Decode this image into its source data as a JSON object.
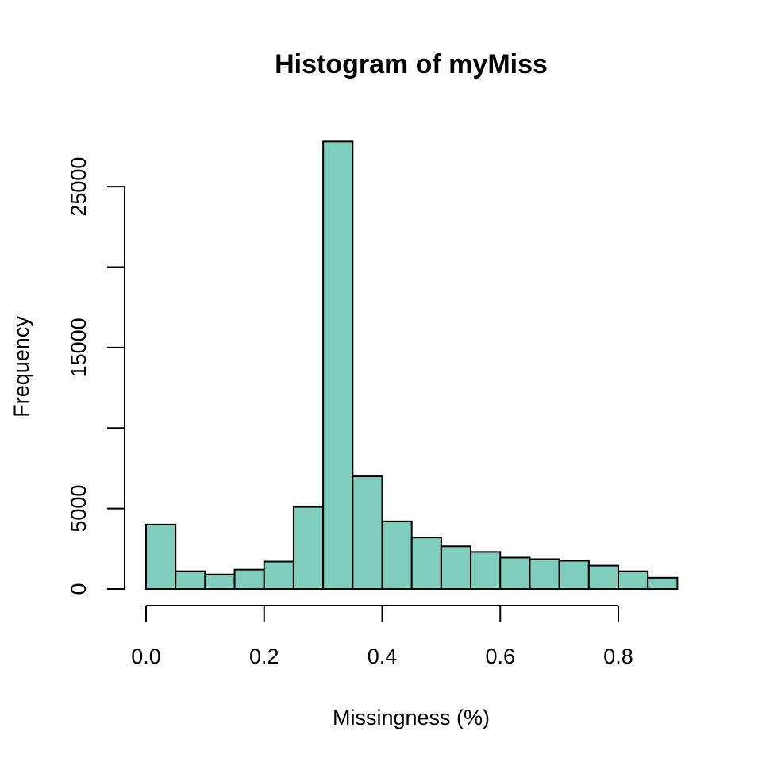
{
  "chart_data": {
    "type": "bar",
    "title": "Histogram of myMiss",
    "xlabel": "Missingness (%)",
    "ylabel": "Frequency",
    "bin_edges": [
      0.0,
      0.05,
      0.1,
      0.15,
      0.2,
      0.25,
      0.3,
      0.35,
      0.4,
      0.45,
      0.5,
      0.55,
      0.6,
      0.65,
      0.7,
      0.75,
      0.8,
      0.85,
      0.9
    ],
    "values": [
      4000,
      1100,
      900,
      1200,
      1700,
      5100,
      27800,
      7000,
      4200,
      3200,
      2650,
      2300,
      1950,
      1850,
      1750,
      1450,
      1100,
      700
    ],
    "xlim": [
      0,
      0.9
    ],
    "ylim": [
      0,
      27800
    ],
    "x_ticks": [
      0.0,
      0.2,
      0.4,
      0.6,
      0.8
    ],
    "x_tick_labels": [
      "0.0",
      "0.2",
      "0.4",
      "0.6",
      "0.8"
    ],
    "y_ticks": [
      0,
      5000,
      10000,
      15000,
      20000,
      25000
    ],
    "y_tick_labels": [
      "0",
      "5000",
      "",
      "15000",
      "",
      "25000"
    ],
    "grid": false,
    "legend": "none",
    "bar_color": "#7fcdbb",
    "edge_color": "#000000"
  }
}
